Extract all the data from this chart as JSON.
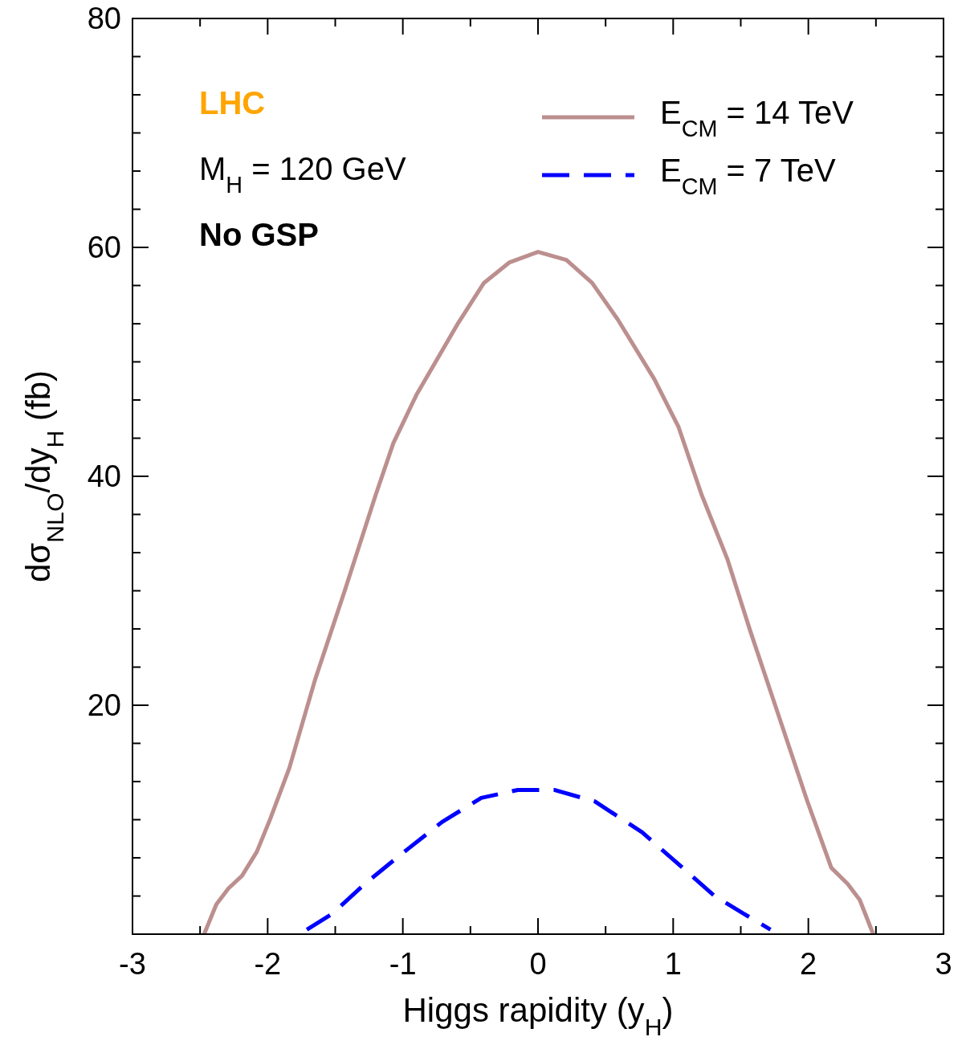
{
  "chart_data": {
    "type": "line",
    "xlabel": "Higgs rapidity (y$_{H}$)",
    "ylabel": "dσ$_{NLO}$/dy$_{H}$ (fb)",
    "xlim": [
      -3,
      3
    ],
    "ylim": [
      0,
      80
    ],
    "xticks": [
      -3,
      {
        "value": -2.5,
        "label": null
      },
      -2,
      {
        "value": -1.5,
        "label": null
      },
      -1,
      {
        "value": -0.5,
        "label": null
      },
      0,
      {
        "value": 0.5,
        "label": null
      },
      1,
      {
        "value": 1.5,
        "label": null
      },
      2,
      {
        "value": 2.5,
        "label": null
      },
      3
    ],
    "yticks": [
      {
        "value": 0,
        "label": null
      },
      {
        "value": 3.33,
        "label": null
      },
      {
        "value": 6.67,
        "label": null
      },
      {
        "value": 10,
        "label": null
      },
      {
        "value": 13.33,
        "label": null
      },
      {
        "value": 16.67,
        "label": null
      },
      20,
      {
        "value": 23.33,
        "label": null
      },
      {
        "value": 26.67,
        "label": null
      },
      {
        "value": 30,
        "label": null
      },
      {
        "value": 33.33,
        "label": null
      },
      {
        "value": 36.67,
        "label": null
      },
      40,
      {
        "value": 43.33,
        "label": null
      },
      {
        "value": 46.67,
        "label": null
      },
      {
        "value": 50,
        "label": null
      },
      {
        "value": 53.33,
        "label": null
      },
      {
        "value": 56.67,
        "label": null
      },
      60,
      {
        "value": 63.33,
        "label": null
      },
      {
        "value": 66.67,
        "label": null
      },
      {
        "value": 70,
        "label": null
      },
      {
        "value": 73.33,
        "label": null
      },
      {
        "value": 76.67,
        "label": null
      },
      80
    ],
    "legend": "top right",
    "grid": false,
    "marker": "none",
    "annotations": [
      "LHC",
      "M$_{H}$ = 120 GeV",
      "No GSP"
    ],
    "series": [
      {
        "name": "E$_{CM}$ = 14 TeV",
        "color": "#bc8f8f",
        "line_style": "solid",
        "x": [
          -2.47,
          -2.38,
          -2.29,
          -2.19,
          -2.08,
          -1.98,
          -1.84,
          -1.65,
          -1.43,
          -1.2,
          -1.07,
          -0.9,
          -0.59,
          -0.4,
          -0.21,
          0,
          0.21,
          0.4,
          0.59,
          0.86,
          1.04,
          1.21,
          1.4,
          1.57,
          1.78,
          1.99,
          2.17,
          2.29,
          2.38,
          2.48
        ],
        "values": [
          0,
          2.6,
          4,
          5.1,
          7.2,
          10.1,
          14.5,
          22.2,
          30,
          38.4,
          42.9,
          47.1,
          53.4,
          56.9,
          58.7,
          59.6,
          58.9,
          56.9,
          53.7,
          48.5,
          44.3,
          38.4,
          32.8,
          26.5,
          19.1,
          11.7,
          5.8,
          4.4,
          3,
          0
        ]
      },
      {
        "name": "E$_{CM}$ = 7 TeV",
        "color": "#0000ff",
        "line_style": "dashed",
        "x": [
          -1.71,
          -1.52,
          -1.28,
          -1.01,
          -0.71,
          -0.42,
          -0.15,
          0.12,
          0.42,
          0.77,
          1.07,
          1.31,
          1.52,
          1.72
        ],
        "values": [
          0.4,
          1.8,
          4.4,
          7,
          9.8,
          11.9,
          12.6,
          12.6,
          11.6,
          8.9,
          5.8,
          3.3,
          1.8,
          0.4
        ]
      }
    ]
  }
}
